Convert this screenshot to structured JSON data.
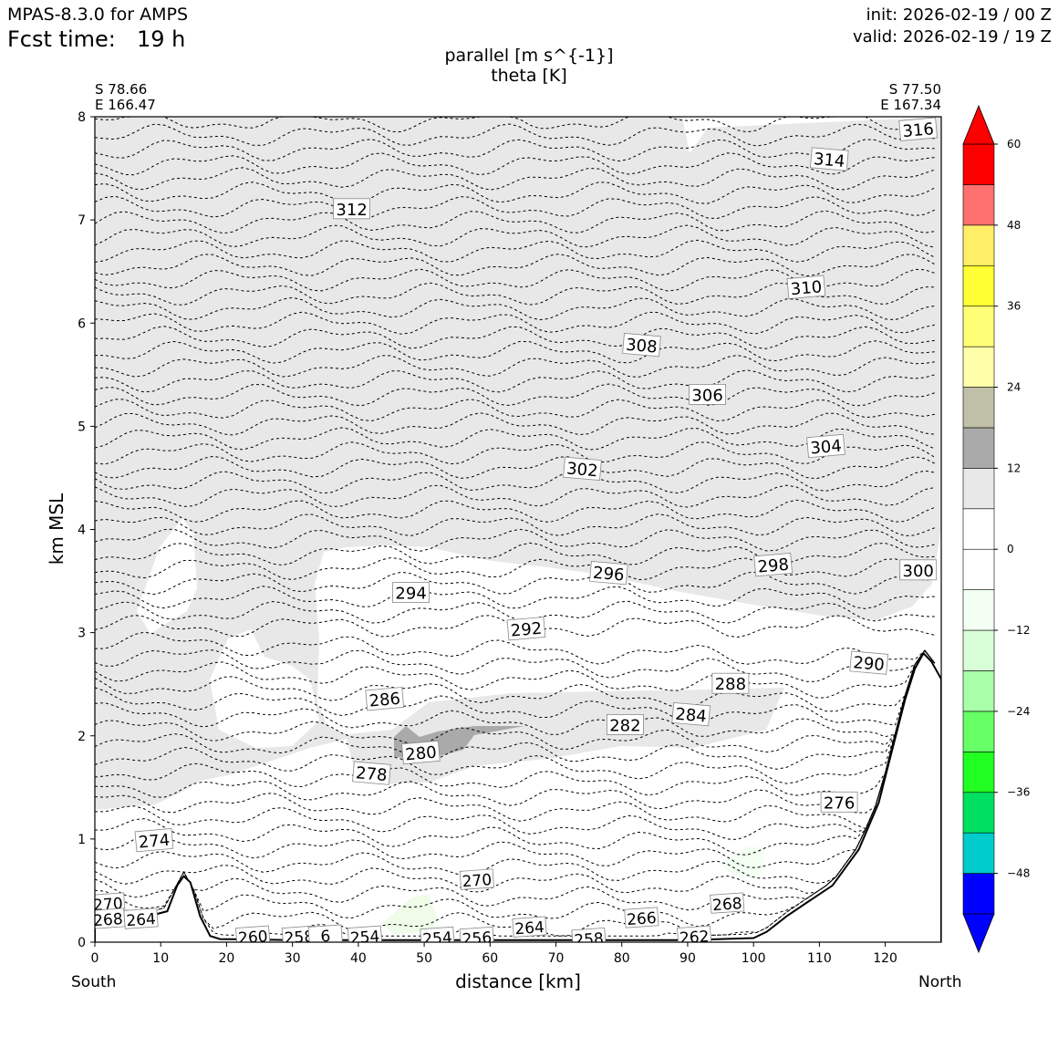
{
  "header": {
    "model": "MPAS-8.3.0 for AMPS",
    "fcst_label": "Fcst time:",
    "fcst_value": "19 h",
    "init": "init: 2026-02-19 / 00 Z",
    "valid": "valid: 2026-02-19 / 19 Z"
  },
  "chart_data": {
    "type": "contour",
    "title_line1": "parallel [m s^{-1}]",
    "title_line2": "theta [K]",
    "xlabel": "distance [km]",
    "ylabel": "km MSL",
    "xlim": [
      0,
      128.5
    ],
    "ylim": [
      0,
      8
    ],
    "x_ticks": [
      "0",
      "10",
      "20",
      "30",
      "40",
      "50",
      "60",
      "70",
      "80",
      "90",
      "100",
      "110",
      "120"
    ],
    "y_ticks": [
      "0",
      "1",
      "2",
      "3",
      "4",
      "5",
      "6",
      "7",
      "8"
    ],
    "left_end": {
      "lat": "S 78.66",
      "lon": "E 166.47",
      "dir": "South"
    },
    "right_end": {
      "lat": "S 77.50",
      "lon": "E 167.34",
      "dir": "North"
    },
    "colorbar": {
      "ticks": [
        "60",
        "48",
        "36",
        "24",
        "12",
        "0",
        "−12",
        "−24",
        "−36",
        "−48"
      ],
      "levels": [
        -54,
        -48,
        -42,
        -36,
        -30,
        -24,
        -18,
        -12,
        -6,
        0,
        6,
        12,
        18,
        24,
        30,
        36,
        42,
        48,
        54,
        60
      ],
      "colors": [
        "#0000ff",
        "#00cccc",
        "#00e060",
        "#22ff22",
        "#66ff66",
        "#aaffaa",
        "#d8ffd8",
        "#f2fff2",
        "#ffffff",
        "#ffffff",
        "#e8e8e8",
        "#aaaaaa",
        "#c0c0a8",
        "#ffffaa",
        "#ffff77",
        "#ffff33",
        "#ffee66",
        "#ff7070",
        "#ff0000"
      ],
      "under_color": "#0000ff",
      "over_color": "#ff0000"
    },
    "terrain": [
      [
        0,
        0.22
      ],
      [
        8,
        0.25
      ],
      [
        11,
        0.3
      ],
      [
        12.5,
        0.55
      ],
      [
        13.5,
        0.64
      ],
      [
        14.5,
        0.58
      ],
      [
        16,
        0.25
      ],
      [
        17.5,
        0.06
      ],
      [
        19,
        0.03
      ],
      [
        30,
        0.02
      ],
      [
        60,
        0.02
      ],
      [
        90,
        0.02
      ],
      [
        100,
        0.04
      ],
      [
        102,
        0.1
      ],
      [
        105,
        0.25
      ],
      [
        108,
        0.38
      ],
      [
        112,
        0.55
      ],
      [
        116,
        0.9
      ],
      [
        119,
        1.35
      ],
      [
        121,
        1.85
      ],
      [
        123,
        2.35
      ],
      [
        124.5,
        2.65
      ],
      [
        125.8,
        2.8
      ],
      [
        127,
        2.72
      ],
      [
        128.5,
        2.55
      ]
    ],
    "theta_contours": [
      {
        "value": "274",
        "label_x": 9,
        "label_y": 0.98
      },
      {
        "value": "276",
        "label_x": 113,
        "label_y": 1.35
      },
      {
        "value": "278",
        "label_x": 42,
        "label_y": 1.63
      },
      {
        "value": "280",
        "label_x": 49.5,
        "label_y": 1.83
      },
      {
        "value": "282",
        "label_x": 80.5,
        "label_y": 2.1
      },
      {
        "value": "284",
        "label_x": 90.5,
        "label_y": 2.2
      },
      {
        "value": "286",
        "label_x": 44,
        "label_y": 2.35
      },
      {
        "value": "288",
        "label_x": 96.5,
        "label_y": 2.5
      },
      {
        "value": "290",
        "label_x": 117.5,
        "label_y": 2.7
      },
      {
        "value": "292",
        "label_x": 65.5,
        "label_y": 3.03
      },
      {
        "value": "294",
        "label_x": 48,
        "label_y": 3.38
      },
      {
        "value": "296",
        "label_x": 78,
        "label_y": 3.57
      },
      {
        "value": "298",
        "label_x": 103,
        "label_y": 3.65
      },
      {
        "value": "300",
        "label_x": 125,
        "label_y": 3.6
      },
      {
        "value": "302",
        "label_x": 74,
        "label_y": 4.58
      },
      {
        "value": "304",
        "label_x": 111,
        "label_y": 4.8
      },
      {
        "value": "306",
        "label_x": 93,
        "label_y": 5.3
      },
      {
        "value": "308",
        "label_x": 83,
        "label_y": 5.78
      },
      {
        "value": "310",
        "label_x": 108,
        "label_y": 6.34
      },
      {
        "value": "312",
        "label_x": 39,
        "label_y": 7.1
      },
      {
        "value": "314",
        "label_x": 111.5,
        "label_y": 7.58
      },
      {
        "value": "316",
        "label_x": 125,
        "label_y": 7.87
      }
    ],
    "surface_labels": [
      "270",
      "268",
      "264",
      "260",
      "258",
      "6",
      "254",
      "254",
      "256",
      "264",
      "258",
      "266",
      "268",
      "262",
      "270"
    ]
  }
}
